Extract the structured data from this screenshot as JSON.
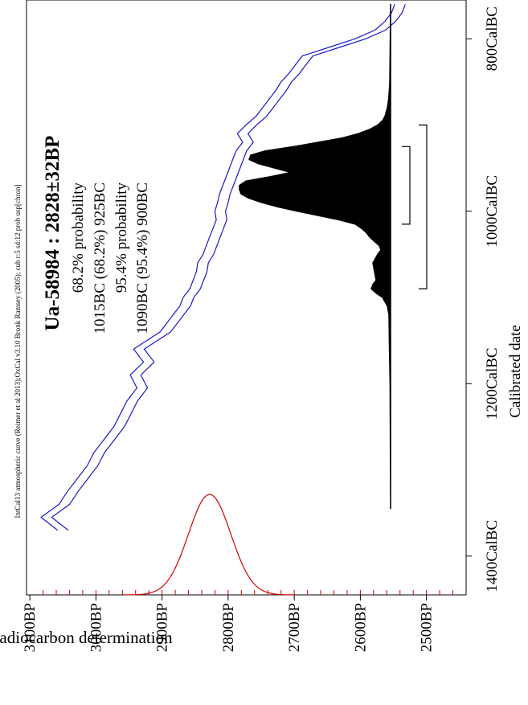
{
  "chart_data": {
    "type": "area",
    "header": "IntCal13 atmospheric curve (Reimer et al 2013);OxCal v3.10 Bronk Ramsey (2005); cub r:5 sd:12 prob usp[chron]",
    "title": "Ua-58984 : 2828±32BP",
    "ranges": [
      "68.2% probability",
      "1015BC (68.2%) 925BC",
      "95.4% probability",
      "1090BC (95.4%) 900BC"
    ],
    "xlabel": "Calibrated date",
    "ylabel": "Radiocarbon determination",
    "x_ticks": [
      {
        "value": -1400,
        "label": "1400CalBC"
      },
      {
        "value": -1200,
        "label": "1200CalBC"
      },
      {
        "value": -1000,
        "label": "1000CalBC"
      },
      {
        "value": -800,
        "label": "800CalBC"
      }
    ],
    "y_ticks": [
      {
        "value": 3100,
        "label": "3100BP"
      },
      {
        "value": 3000,
        "label": "3000BP"
      },
      {
        "value": 2900,
        "label": "2900BP"
      },
      {
        "value": 2800,
        "label": "2800BP"
      },
      {
        "value": 2700,
        "label": "2700BP"
      },
      {
        "value": 2600,
        "label": "2600BP"
      },
      {
        "value": 2500,
        "label": "2500BP"
      }
    ],
    "xlim": [
      -1445,
      -755
    ],
    "ylim": [
      2440,
      3105
    ],
    "measurement": {
      "mean": 2828,
      "sigma": 32
    },
    "calibration_curve": {
      "x": [
        -1370,
        -1355,
        -1340,
        -1325,
        -1310,
        -1295,
        -1280,
        -1265,
        -1250,
        -1235,
        -1220,
        -1205,
        -1190,
        -1175,
        -1160,
        -1150,
        -1140,
        -1130,
        -1120,
        -1110,
        -1100,
        -1090,
        -1080,
        -1070,
        -1060,
        -1050,
        -1040,
        -1030,
        -1020,
        -1010,
        -1000,
        -990,
        -980,
        -970,
        -960,
        -950,
        -940,
        -930,
        -920,
        -910,
        -900,
        -890,
        -880,
        -870,
        -860,
        -850,
        -840,
        -830,
        -820,
        -810,
        -800,
        -790,
        -780,
        -770,
        -760
      ],
      "y": [
        3050,
        3075,
        3048,
        3035,
        3020,
        3005,
        2995,
        2980,
        2965,
        2955,
        2945,
        2930,
        2940,
        2920,
        2935,
        2915,
        2895,
        2885,
        2875,
        2865,
        2860,
        2850,
        2845,
        2840,
        2838,
        2830,
        2825,
        2820,
        2815,
        2810,
        2812,
        2808,
        2805,
        2800,
        2795,
        2790,
        2785,
        2780,
        2770,
        2778,
        2765,
        2750,
        2740,
        2730,
        2720,
        2712,
        2700,
        2690,
        2680,
        2640,
        2600,
        2570,
        2555,
        2545,
        2540
      ],
      "band_halfwidth": 8
    },
    "calibrated_distribution": {
      "x": [
        -1345,
        -1300,
        -1250,
        -1200,
        -1150,
        -1120,
        -1110,
        -1100,
        -1095,
        -1090,
        -1085,
        -1080,
        -1070,
        -1060,
        -1050,
        -1045,
        -1040,
        -1035,
        -1030,
        -1025,
        -1020,
        -1015,
        -1010,
        -1005,
        -1000,
        -995,
        -990,
        -985,
        -980,
        -975,
        -970,
        -965,
        -960,
        -955,
        -950,
        -945,
        -940,
        -935,
        -930,
        -925,
        -920,
        -915,
        -910,
        -905,
        -900,
        -895,
        -890,
        -880,
        -870,
        -860,
        -850,
        -800,
        -760
      ],
      "p": [
        0.0,
        0.001,
        0.002,
        0.003,
        0.008,
        0.01,
        0.02,
        0.05,
        0.09,
        0.12,
        0.11,
        0.09,
        0.1,
        0.11,
        0.08,
        0.06,
        0.07,
        0.1,
        0.13,
        0.15,
        0.18,
        0.22,
        0.32,
        0.45,
        0.58,
        0.7,
        0.8,
        0.88,
        0.93,
        0.94,
        0.94,
        0.9,
        0.75,
        0.62,
        0.72,
        0.82,
        0.88,
        0.87,
        0.78,
        0.6,
        0.45,
        0.3,
        0.2,
        0.13,
        0.08,
        0.05,
        0.035,
        0.02,
        0.012,
        0.008,
        0.005,
        0.002,
        0.0
      ]
    },
    "range_1sigma": [
      -1015,
      -925
    ],
    "range_2sigma": [
      -1090,
      -900
    ]
  }
}
